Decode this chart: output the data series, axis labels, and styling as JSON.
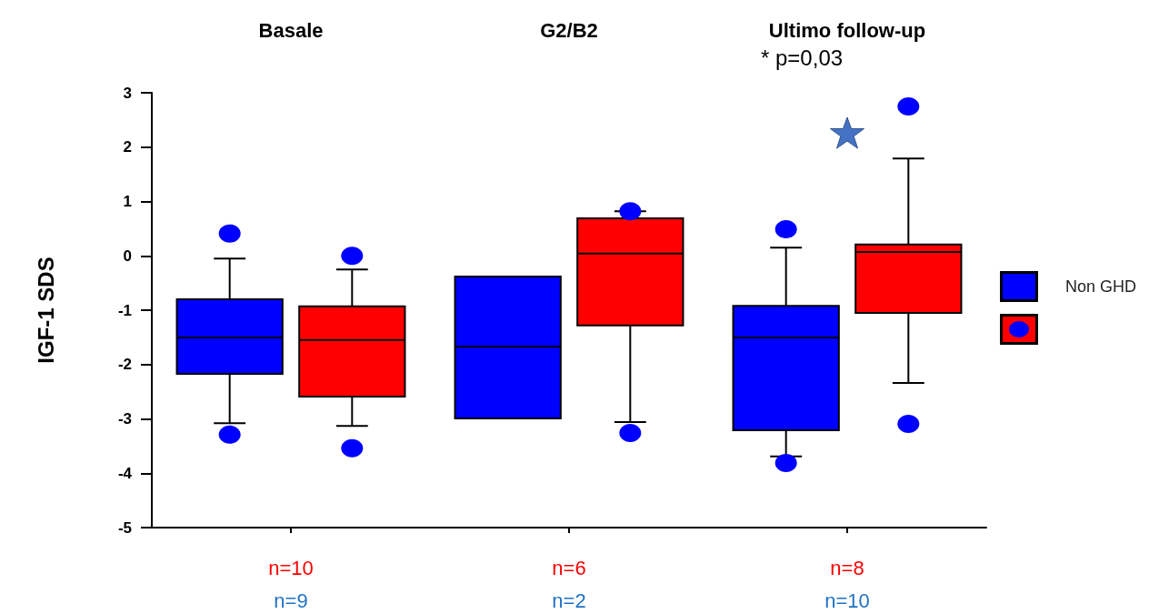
{
  "chart_data": {
    "type": "box",
    "ylabel": "IGF-1 SDS",
    "categories": [
      "Basale",
      "G2/B2",
      "Ultimo follow-up"
    ],
    "series": [
      {
        "name": "Non GHD",
        "color": "#0000ff",
        "boxes": [
          {
            "low": -3.08,
            "q1": -2.17,
            "median": -1.5,
            "q3": -0.8,
            "high": -0.05,
            "outliers": [
              0.41,
              -3.29
            ]
          },
          {
            "low": -2.99,
            "q1": -2.99,
            "median": -1.67,
            "q3": -0.38,
            "high": -0.38
          },
          {
            "low": -3.69,
            "q1": -3.21,
            "median": -1.5,
            "q3": -0.92,
            "high": 0.15,
            "outliers": [
              0.49,
              -3.81
            ]
          }
        ]
      },
      {
        "color": "#ff0000",
        "boxes": [
          {
            "low": -3.13,
            "q1": -2.59,
            "median": -1.55,
            "q3": -0.93,
            "high": -0.25,
            "outliers": [
              0.0,
              -3.54
            ]
          },
          {
            "low": -3.06,
            "q1": -1.28,
            "median": 0.04,
            "q3": 0.69,
            "high": 0.82,
            "outliers": [
              0.82,
              -3.26
            ]
          },
          {
            "low": -2.34,
            "q1": -1.05,
            "median": 0.07,
            "q3": 0.21,
            "high": 1.79,
            "outliers": [
              2.75,
              -3.09
            ]
          }
        ]
      }
    ],
    "ylim": [
      -5,
      3
    ],
    "yticks": [
      -5,
      -4,
      -3,
      -2,
      -1,
      0,
      1,
      2,
      3
    ],
    "grid": false,
    "legend": "right",
    "annotations": [
      "* p=0,03",
      "n=10",
      "n=9",
      "n=6",
      "n=2",
      "n=8",
      "n=10"
    ]
  }
}
